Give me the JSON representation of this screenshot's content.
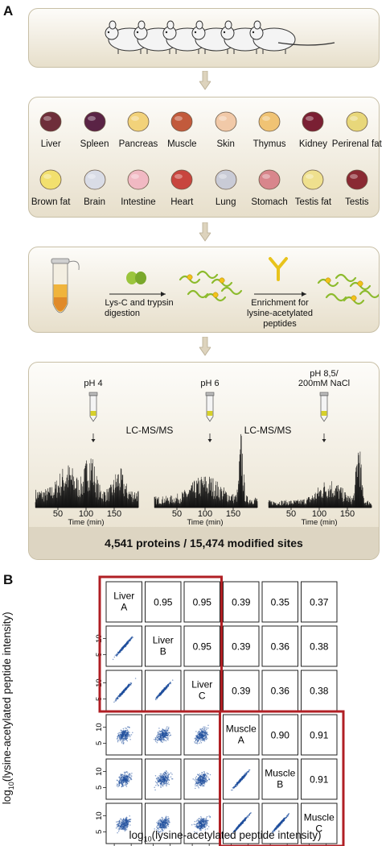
{
  "panels": {
    "a": "A",
    "b": "B"
  },
  "tissues_row1": [
    "Liver",
    "Spleen",
    "Pancreas",
    "Muscle",
    "Skin",
    "Thymus",
    "Kidney",
    "Perirenal fat"
  ],
  "tissues_row2": [
    "Brown fat",
    "Brain",
    "Intestine",
    "Heart",
    "Lung",
    "Stomach",
    "Testis fat",
    "Testis"
  ],
  "workflow": {
    "digestion": [
      "Lys-C and trypsin",
      "digestion"
    ],
    "enrichment": [
      "Enrichment for",
      "lysine-acetylated",
      "peptides"
    ]
  },
  "lcms": {
    "ph_labels": [
      "pH 4",
      "pH 6",
      "pH 8,5/",
      "200mM NaCl"
    ],
    "method": "LC-MS/MS",
    "time_ticks": [
      "50",
      "100",
      "150"
    ],
    "time_label": "Time (min)",
    "summary": "4,541 proteins / 15,474 modified sites"
  },
  "matrix": {
    "labels": [
      [
        "Liver",
        "A"
      ],
      [
        "Liver",
        "B"
      ],
      [
        "Liver",
        "C"
      ],
      [
        "Muscle",
        "A"
      ],
      [
        "Muscle",
        "B"
      ],
      [
        "Muscle",
        "C"
      ]
    ],
    "correlations": [
      [
        null,
        "0.95",
        "0.95",
        "0.39",
        "0.35",
        "0.37"
      ],
      [
        null,
        null,
        "0.95",
        "0.39",
        "0.36",
        "0.38"
      ],
      [
        null,
        null,
        null,
        "0.39",
        "0.36",
        "0.38"
      ],
      [
        null,
        null,
        null,
        null,
        "0.90",
        "0.91"
      ],
      [
        null,
        null,
        null,
        null,
        null,
        "0.91"
      ]
    ],
    "axis_ticks": [
      "5",
      "10"
    ],
    "xlabel_pre": "log",
    "xlabel_sub": "10",
    "xlabel_post": "(lysine-acetylated peptide intensity)",
    "highlight_color": "#b01f24",
    "point_color": "#1f4e9c"
  }
}
